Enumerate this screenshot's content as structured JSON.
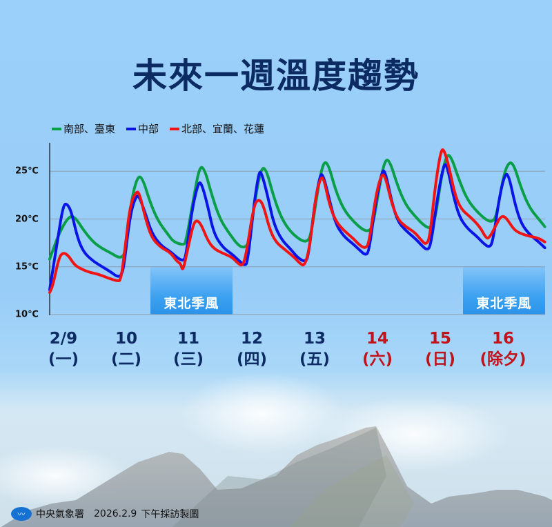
{
  "title": "未來一週溫度趨勢",
  "legend": [
    {
      "label": "南部、臺東",
      "color": "#0a9e48"
    },
    {
      "label": "中部",
      "color": "#0a14e6"
    },
    {
      "label": "北部、宜蘭、花蓮",
      "color": "#f01414"
    }
  ],
  "y_axis": [
    {
      "label": "25℃",
      "value": 25
    },
    {
      "label": "20℃",
      "value": 20
    },
    {
      "label": "15℃",
      "value": 15
    },
    {
      "label": "10℃",
      "value": 10
    }
  ],
  "days": [
    {
      "date": "2/9",
      "weekday": "(一)",
      "color": "#0d2b63"
    },
    {
      "date": "10",
      "weekday": "(二)",
      "color": "#0d2b63"
    },
    {
      "date": "11",
      "weekday": "(三)",
      "color": "#0d2b63"
    },
    {
      "date": "12",
      "weekday": "(四)",
      "color": "#0d2b63"
    },
    {
      "date": "13",
      "weekday": "(五)",
      "color": "#0d2b63"
    },
    {
      "date": "14",
      "weekday": "(六)",
      "color": "#c0141c"
    },
    {
      "date": "15",
      "weekday": "(日)",
      "color": "#c0141c"
    },
    {
      "date": "16",
      "weekday": "(除夕)",
      "color": "#c0141c"
    }
  ],
  "monsoon_bands": [
    {
      "label": "東北季風",
      "start_day": 1.45,
      "end_day": 2.95
    },
    {
      "label": "東北季風",
      "start_day": 6.5,
      "end_day": 8.0
    }
  ],
  "footer": {
    "agency": "中央氣象署",
    "date": "2026.2.9",
    "note": "下午採訪製圖"
  },
  "chart_data": {
    "type": "line",
    "title": "未來一週溫度趨勢",
    "xlabel": "",
    "ylabel": "",
    "ylim": [
      10,
      27.5
    ],
    "yticks": [
      10,
      15,
      20,
      25
    ],
    "grid": true,
    "legend_position": "top-left",
    "categories": [
      "2/9(一)",
      "10(二)",
      "11(三)",
      "12(四)",
      "13(五)",
      "14(六)",
      "15(日)",
      "16(除夕)"
    ],
    "x_unit": "days since 2/9 00:00",
    "series": [
      {
        "name": "南部、臺東",
        "color": "#0a9e48",
        "points": [
          [
            0,
            15.8
          ],
          [
            0.15,
            18.5
          ],
          [
            0.3,
            20.2
          ],
          [
            0.4,
            20.3
          ],
          [
            0.55,
            18.8
          ],
          [
            0.7,
            17.6
          ],
          [
            0.85,
            16.9
          ],
          [
            1.0,
            16.4
          ],
          [
            1.1,
            16.0
          ],
          [
            1.17,
            16.0
          ],
          [
            1.22,
            16.5
          ],
          [
            1.32,
            22.0
          ],
          [
            1.42,
            24.5
          ],
          [
            1.5,
            24.3
          ],
          [
            1.62,
            21.8
          ],
          [
            1.75,
            19.8
          ],
          [
            1.9,
            18.5
          ],
          [
            2.0,
            17.6
          ],
          [
            2.15,
            17.3
          ],
          [
            2.2,
            17.5
          ],
          [
            2.32,
            22.0
          ],
          [
            2.42,
            25.5
          ],
          [
            2.5,
            25.3
          ],
          [
            2.62,
            22.5
          ],
          [
            2.75,
            20.0
          ],
          [
            2.9,
            18.5
          ],
          [
            3.05,
            17.2
          ],
          [
            3.15,
            17.0
          ],
          [
            3.22,
            17.5
          ],
          [
            3.33,
            22.5
          ],
          [
            3.42,
            25.4
          ],
          [
            3.5,
            25.2
          ],
          [
            3.62,
            22.3
          ],
          [
            3.75,
            20.0
          ],
          [
            3.9,
            18.6
          ],
          [
            4.05,
            17.8
          ],
          [
            4.15,
            17.6
          ],
          [
            4.22,
            18.2
          ],
          [
            4.33,
            23.0
          ],
          [
            4.42,
            26.0
          ],
          [
            4.5,
            25.8
          ],
          [
            4.62,
            23.0
          ],
          [
            4.75,
            21.0
          ],
          [
            4.9,
            19.8
          ],
          [
            5.05,
            18.9
          ],
          [
            5.15,
            18.7
          ],
          [
            5.22,
            19.2
          ],
          [
            5.33,
            23.5
          ],
          [
            5.42,
            26.3
          ],
          [
            5.5,
            26.0
          ],
          [
            5.62,
            23.5
          ],
          [
            5.75,
            21.5
          ],
          [
            5.9,
            20.3
          ],
          [
            6.05,
            19.3
          ],
          [
            6.15,
            19.0
          ],
          [
            6.22,
            19.6
          ],
          [
            6.33,
            24.5
          ],
          [
            6.42,
            26.9
          ],
          [
            6.5,
            26.3
          ],
          [
            6.62,
            24.0
          ],
          [
            6.75,
            22.0
          ],
          [
            6.9,
            20.8
          ],
          [
            7.05,
            19.9
          ],
          [
            7.15,
            19.7
          ],
          [
            7.22,
            20.3
          ],
          [
            7.33,
            24.5
          ],
          [
            7.42,
            26.0
          ],
          [
            7.5,
            25.7
          ],
          [
            7.62,
            23.2
          ],
          [
            7.75,
            21.2
          ],
          [
            7.9,
            20.0
          ],
          [
            8.0,
            19.2
          ]
        ]
      },
      {
        "name": "中部",
        "color": "#0a14e6",
        "points": [
          [
            0,
            12.6
          ],
          [
            0.12,
            17.5
          ],
          [
            0.22,
            21.5
          ],
          [
            0.28,
            21.6
          ],
          [
            0.35,
            20.8
          ],
          [
            0.45,
            18.0
          ],
          [
            0.55,
            16.5
          ],
          [
            0.7,
            15.6
          ],
          [
            0.85,
            15.0
          ],
          [
            1.0,
            14.4
          ],
          [
            1.08,
            14.0
          ],
          [
            1.15,
            14.0
          ],
          [
            1.2,
            15.0
          ],
          [
            1.3,
            20.5
          ],
          [
            1.4,
            22.5
          ],
          [
            1.45,
            22.3
          ],
          [
            1.55,
            20.5
          ],
          [
            1.65,
            18.5
          ],
          [
            1.8,
            17.2
          ],
          [
            1.95,
            16.6
          ],
          [
            2.05,
            16.0
          ],
          [
            2.15,
            15.6
          ],
          [
            2.2,
            16.0
          ],
          [
            2.3,
            21.0
          ],
          [
            2.4,
            23.8
          ],
          [
            2.45,
            23.8
          ],
          [
            2.55,
            21.5
          ],
          [
            2.65,
            18.5
          ],
          [
            2.8,
            17.0
          ],
          [
            2.95,
            16.3
          ],
          [
            3.05,
            15.7
          ],
          [
            3.15,
            15.1
          ],
          [
            3.2,
            15.5
          ],
          [
            3.3,
            21.5
          ],
          [
            3.38,
            24.9
          ],
          [
            3.42,
            24.9
          ],
          [
            3.52,
            22.5
          ],
          [
            3.62,
            19.5
          ],
          [
            3.75,
            17.8
          ],
          [
            3.9,
            16.8
          ],
          [
            4.0,
            16.0
          ],
          [
            4.12,
            15.5
          ],
          [
            4.18,
            16.0
          ],
          [
            4.28,
            21.5
          ],
          [
            4.37,
            24.7
          ],
          [
            4.42,
            24.6
          ],
          [
            4.52,
            22.0
          ],
          [
            4.62,
            19.5
          ],
          [
            4.75,
            18.2
          ],
          [
            4.9,
            17.4
          ],
          [
            5.0,
            16.8
          ],
          [
            5.1,
            16.2
          ],
          [
            5.16,
            16.6
          ],
          [
            5.26,
            21.5
          ],
          [
            5.37,
            25.1
          ],
          [
            5.42,
            25.0
          ],
          [
            5.52,
            22.0
          ],
          [
            5.62,
            19.8
          ],
          [
            5.75,
            18.8
          ],
          [
            5.9,
            18.0
          ],
          [
            6.0,
            17.3
          ],
          [
            6.1,
            16.7
          ],
          [
            6.16,
            17.3
          ],
          [
            6.27,
            22.5
          ],
          [
            6.37,
            25.8
          ],
          [
            6.42,
            25.6
          ],
          [
            6.52,
            22.5
          ],
          [
            6.62,
            20.2
          ],
          [
            6.75,
            19.0
          ],
          [
            6.9,
            18.2
          ],
          [
            7.0,
            17.5
          ],
          [
            7.1,
            17.0
          ],
          [
            7.16,
            17.6
          ],
          [
            7.27,
            22.5
          ],
          [
            7.36,
            24.8
          ],
          [
            7.42,
            24.5
          ],
          [
            7.52,
            21.5
          ],
          [
            7.62,
            19.5
          ],
          [
            7.75,
            18.4
          ],
          [
            7.9,
            17.6
          ],
          [
            8.0,
            17.0
          ]
        ]
      },
      {
        "name": "北部、宜蘭、花蓮",
        "color": "#f01414",
        "points": [
          [
            0,
            12.3
          ],
          [
            0.05,
            13.0
          ],
          [
            0.15,
            16.0
          ],
          [
            0.22,
            16.5
          ],
          [
            0.3,
            16.2
          ],
          [
            0.4,
            15.2
          ],
          [
            0.5,
            14.8
          ],
          [
            0.65,
            14.4
          ],
          [
            0.8,
            14.2
          ],
          [
            0.95,
            13.8
          ],
          [
            1.1,
            13.5
          ],
          [
            1.15,
            13.6
          ],
          [
            1.22,
            17.0
          ],
          [
            1.3,
            21.5
          ],
          [
            1.4,
            22.9
          ],
          [
            1.45,
            22.7
          ],
          [
            1.55,
            20.0
          ],
          [
            1.65,
            18.0
          ],
          [
            1.8,
            17.0
          ],
          [
            1.95,
            16.5
          ],
          [
            2.05,
            15.6
          ],
          [
            2.12,
            15.3
          ],
          [
            2.15,
            14.5
          ],
          [
            2.22,
            16.5
          ],
          [
            2.32,
            19.5
          ],
          [
            2.38,
            19.9
          ],
          [
            2.45,
            19.4
          ],
          [
            2.55,
            17.8
          ],
          [
            2.65,
            16.9
          ],
          [
            2.8,
            16.4
          ],
          [
            2.95,
            16.0
          ],
          [
            3.05,
            15.3
          ],
          [
            3.12,
            15.1
          ],
          [
            3.18,
            16.5
          ],
          [
            3.3,
            21.5
          ],
          [
            3.38,
            22.1
          ],
          [
            3.45,
            21.5
          ],
          [
            3.55,
            19.0
          ],
          [
            3.65,
            17.6
          ],
          [
            3.8,
            16.8
          ],
          [
            3.95,
            16.0
          ],
          [
            4.05,
            15.3
          ],
          [
            4.12,
            15.1
          ],
          [
            4.2,
            17.0
          ],
          [
            4.3,
            22.5
          ],
          [
            4.38,
            24.4
          ],
          [
            4.43,
            24.2
          ],
          [
            4.52,
            21.5
          ],
          [
            4.62,
            19.8
          ],
          [
            4.75,
            18.8
          ],
          [
            4.9,
            18.0
          ],
          [
            5.0,
            17.3
          ],
          [
            5.1,
            16.9
          ],
          [
            5.16,
            17.5
          ],
          [
            5.27,
            22.5
          ],
          [
            5.36,
            24.7
          ],
          [
            5.42,
            24.5
          ],
          [
            5.52,
            21.8
          ],
          [
            5.62,
            20.0
          ],
          [
            5.75,
            19.2
          ],
          [
            5.9,
            18.6
          ],
          [
            6.0,
            17.8
          ],
          [
            6.08,
            17.3
          ],
          [
            6.14,
            18.0
          ],
          [
            6.23,
            23.5
          ],
          [
            6.32,
            27.2
          ],
          [
            6.37,
            27.3
          ],
          [
            6.45,
            25.5
          ],
          [
            6.55,
            22.5
          ],
          [
            6.65,
            21.0
          ],
          [
            6.8,
            20.2
          ],
          [
            6.95,
            19.2
          ],
          [
            7.05,
            18.0
          ],
          [
            7.1,
            18.0
          ],
          [
            7.2,
            19.2
          ],
          [
            7.28,
            20.2
          ],
          [
            7.34,
            20.3
          ],
          [
            7.4,
            19.9
          ],
          [
            7.5,
            18.9
          ],
          [
            7.6,
            18.5
          ],
          [
            7.75,
            18.2
          ],
          [
            7.9,
            18.0
          ],
          [
            8.0,
            17.6
          ]
        ]
      }
    ]
  }
}
